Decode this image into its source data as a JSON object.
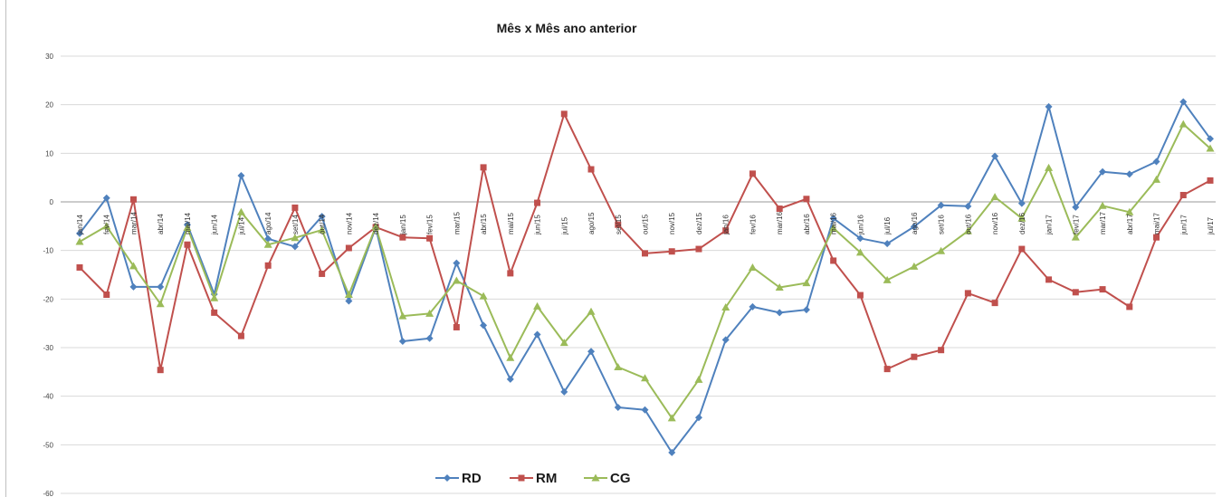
{
  "chart_data": {
    "type": "line",
    "title": "Mês x Mês ano anterior",
    "xlabel": "",
    "ylabel": "",
    "ylim": [
      -60,
      30
    ],
    "yticks": [
      30,
      20,
      10,
      0,
      -10,
      -20,
      -30,
      -40,
      -50,
      -60
    ],
    "grid": true,
    "legend_position": "bottom",
    "categories": [
      "jan/14",
      "fev/14",
      "mar/14",
      "abr/14",
      "mai/14",
      "jun/14",
      "jul/14",
      "ago/14",
      "set/14",
      "out/14",
      "nov/14",
      "dez/14",
      "jan/15",
      "fev/15",
      "mar/15",
      "abr/15",
      "mai/15",
      "jun/15",
      "jul/15",
      "ago/15",
      "set/15",
      "out/15",
      "nov/15",
      "dez/15",
      "jan/16",
      "fev/16",
      "mar/16",
      "abr/16",
      "mai/16",
      "jun/16",
      "jul/16",
      "ago/16",
      "set/16",
      "out/16",
      "nov/16",
      "dez/16",
      "jan/17",
      "fev/17",
      "mar/17",
      "abr/17",
      "mai/17",
      "jun/17",
      "jul/17"
    ],
    "series": [
      {
        "name": "RD",
        "color": "#4f81bd",
        "marker": "diamond",
        "values": [
          -6.5,
          0.8,
          -17.5,
          -17.5,
          -4.7,
          -19.0,
          5.4,
          -7.6,
          -9.2,
          -3.0,
          -20.4,
          -5.3,
          -28.7,
          -28.1,
          -12.6,
          -25.4,
          -36.5,
          -27.3,
          -39.1,
          -30.8,
          -42.3,
          -42.8,
          -51.6,
          -44.4,
          -28.4,
          -21.6,
          -22.8,
          -22.2,
          -3.4,
          -7.5,
          -8.6,
          -5.1,
          -0.7,
          -0.9,
          9.4,
          -0.3,
          19.6,
          -1.1,
          6.2,
          5.7,
          8.3,
          20.6,
          13.0
        ]
      },
      {
        "name": "RM",
        "color": "#c0504d",
        "marker": "square",
        "values": [
          -13.5,
          -19.1,
          0.5,
          -34.6,
          -8.8,
          -22.8,
          -27.6,
          -13.1,
          -1.2,
          -14.8,
          -9.5,
          -5.2,
          -7.3,
          -7.5,
          -25.8,
          7.1,
          -14.7,
          -0.2,
          18.1,
          6.7,
          -4.7,
          -10.6,
          -10.2,
          -9.7,
          -5.9,
          5.8,
          -1.4,
          0.6,
          -12.1,
          -19.2,
          -34.4,
          -31.9,
          -30.5,
          -18.8,
          -20.8,
          -9.7,
          -16.0,
          -18.6,
          -18.0,
          -21.6,
          -7.3,
          1.4,
          4.4
        ]
      },
      {
        "name": "CG",
        "color": "#9bbb59",
        "marker": "triangle",
        "values": [
          -8.2,
          -5.0,
          -13.2,
          -21.0,
          -5.3,
          -19.8,
          -2.1,
          -8.8,
          -7.4,
          -5.8,
          -19.1,
          -5.1,
          -23.5,
          -23.0,
          -16.2,
          -19.4,
          -32.1,
          -21.5,
          -29.0,
          -22.6,
          -34.0,
          -36.3,
          -44.5,
          -36.6,
          -21.7,
          -13.5,
          -17.6,
          -16.7,
          -5.4,
          -10.4,
          -16.1,
          -13.3,
          -10.1,
          -6.0,
          1.0,
          -3.4,
          7.0,
          -7.3,
          -0.8,
          -2.1,
          4.6,
          16.0,
          11.0
        ]
      }
    ]
  }
}
